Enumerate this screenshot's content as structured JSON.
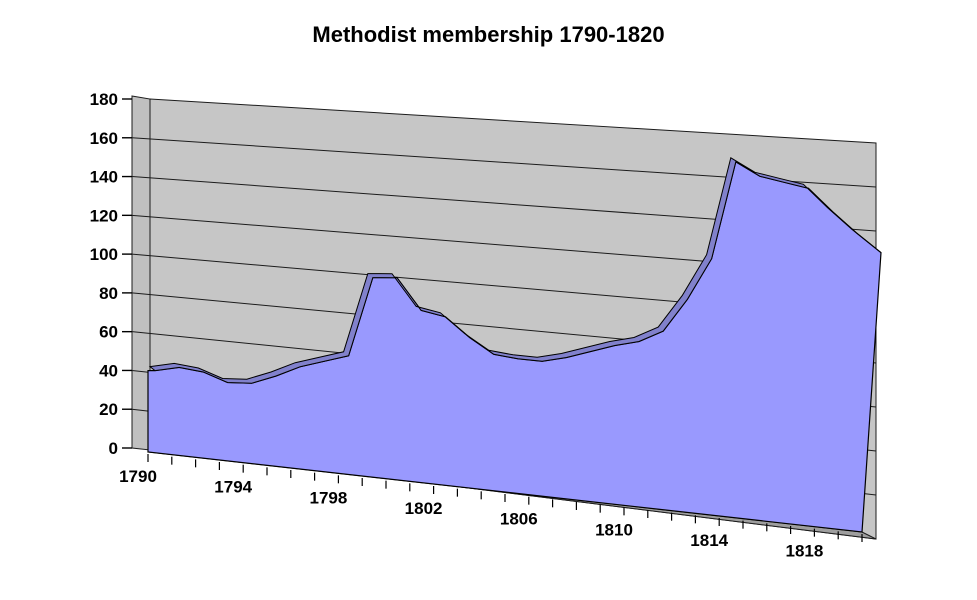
{
  "chart_data": {
    "type": "area",
    "projection": "3d-area-perspective",
    "title": "Methodist membership 1790-1820",
    "series_name": "Methodist membership",
    "x": [
      1790,
      1791,
      1792,
      1793,
      1794,
      1795,
      1796,
      1797,
      1798,
      1799,
      1800,
      1801,
      1802,
      1803,
      1804,
      1805,
      1806,
      1807,
      1808,
      1809,
      1810,
      1811,
      1812,
      1813,
      1814,
      1815,
      1816,
      1817,
      1818,
      1819,
      1820
    ],
    "values": [
      42,
      45,
      44,
      40,
      41,
      46,
      52,
      56,
      60,
      100,
      101,
      86,
      84,
      75,
      68,
      67,
      67,
      70,
      74,
      78,
      81,
      87,
      103,
      123,
      169,
      163,
      161,
      159,
      149,
      140,
      132
    ],
    "ylim": [
      0,
      180
    ],
    "ytick_step": 20,
    "ytick_labels": [
      "0",
      "20",
      "40",
      "60",
      "80",
      "100",
      "120",
      "140",
      "160",
      "180"
    ],
    "xticks_labeled": [
      1790,
      1794,
      1798,
      1802,
      1806,
      1810,
      1814,
      1818
    ],
    "grid": true,
    "legend": "none",
    "colors": {
      "area_fill": "#9999fe",
      "area_top_band": "#8181cc",
      "area_outline": "#000000",
      "back_wall": "#c6c6c6",
      "side_wall": "#c0c0c0",
      "floor": "#9e9e9e",
      "gridline": "#1c1c1c",
      "axis": "#000000",
      "text": "#000000",
      "background": "#ffffff"
    }
  }
}
